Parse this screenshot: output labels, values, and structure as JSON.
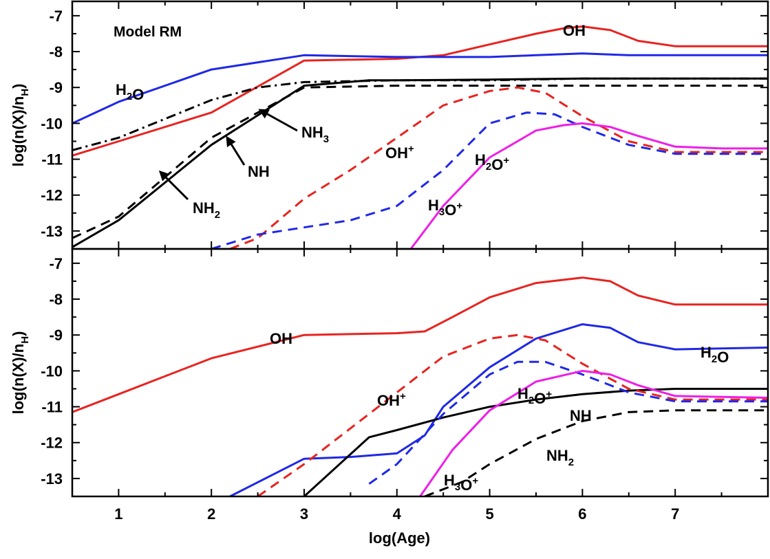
{
  "chart_data": [
    {
      "type": "line",
      "panel": "top",
      "title": "Model RM",
      "xlabel": "",
      "ylabel": "log(n(X)/n_H)",
      "xlim": [
        0.5,
        8.0
      ],
      "ylim": [
        -13.5,
        -6.6
      ],
      "xticks": [
        1,
        2,
        3,
        4,
        5,
        6,
        7
      ],
      "yticks": [
        -13,
        -12,
        -11,
        -10,
        -9,
        -8,
        -7
      ],
      "grid": false,
      "series": [
        {
          "name": "OH",
          "color": "#e8231f",
          "style": "solid",
          "x": [
            0.5,
            1.0,
            2.0,
            3.0,
            4.0,
            4.5,
            5.0,
            5.5,
            5.8,
            6.0,
            6.3,
            6.6,
            7.0,
            8.0
          ],
          "y": [
            -10.9,
            -10.5,
            -9.7,
            -8.25,
            -8.2,
            -8.1,
            -7.8,
            -7.5,
            -7.35,
            -7.3,
            -7.4,
            -7.7,
            -7.85,
            -7.85
          ]
        },
        {
          "name": "H2O",
          "color": "#1f28e6",
          "style": "solid",
          "x": [
            0.5,
            1.0,
            2.0,
            3.0,
            4.0,
            4.5,
            5.0,
            5.5,
            6.0,
            6.5,
            7.0,
            8.0
          ],
          "y": [
            -10.0,
            -9.4,
            -8.5,
            -8.1,
            -8.15,
            -8.15,
            -8.15,
            -8.1,
            -8.05,
            -8.1,
            -8.1,
            -8.1
          ]
        },
        {
          "name": "NH3",
          "color": "#000000",
          "style": "dashdot",
          "x": [
            0.5,
            1.0,
            2.0,
            2.5,
            3.0,
            4.0,
            5.0,
            6.0,
            7.0,
            8.0
          ],
          "y": [
            -10.75,
            -10.4,
            -9.35,
            -9.0,
            -8.85,
            -8.8,
            -8.8,
            -8.75,
            -8.75,
            -8.75
          ]
        },
        {
          "name": "NH",
          "color": "#000000",
          "style": "dashed",
          "x": [
            0.5,
            1.0,
            2.0,
            3.0,
            4.0,
            5.0,
            6.0,
            7.0,
            8.0
          ],
          "y": [
            -13.2,
            -12.6,
            -10.4,
            -9.0,
            -8.95,
            -8.95,
            -8.95,
            -8.95,
            -8.95
          ]
        },
        {
          "name": "NH2",
          "color": "#000000",
          "style": "solid",
          "x": [
            0.5,
            1.0,
            2.0,
            3.0,
            3.7,
            4.0,
            5.0,
            6.0,
            7.0,
            8.0
          ],
          "y": [
            -13.45,
            -12.7,
            -10.6,
            -8.95,
            -8.8,
            -8.8,
            -8.78,
            -8.75,
            -8.75,
            -8.75
          ]
        },
        {
          "name": "OH+",
          "color": "#e8231f",
          "style": "dashed",
          "x": [
            2.2,
            2.5,
            3.0,
            3.5,
            4.0,
            4.5,
            5.0,
            5.3,
            5.6,
            6.0,
            6.5,
            7.0,
            8.0
          ],
          "y": [
            -13.5,
            -13.2,
            -12.1,
            -11.3,
            -10.4,
            -9.5,
            -9.1,
            -9.0,
            -9.15,
            -9.8,
            -10.5,
            -10.8,
            -10.8
          ]
        },
        {
          "name": "H2O+",
          "color": "#1f28e6",
          "style": "dashed",
          "x": [
            2.0,
            2.5,
            3.0,
            3.5,
            4.0,
            4.5,
            5.0,
            5.4,
            5.7,
            6.0,
            6.5,
            7.0,
            8.0
          ],
          "y": [
            -13.5,
            -13.1,
            -12.9,
            -12.7,
            -12.3,
            -11.3,
            -10.0,
            -9.7,
            -9.75,
            -10.1,
            -10.6,
            -10.85,
            -10.85
          ]
        },
        {
          "name": "H3O+",
          "color": "#ee1ee8",
          "style": "solid",
          "x": [
            4.15,
            4.5,
            5.0,
            5.5,
            5.8,
            6.0,
            6.3,
            6.6,
            7.0,
            7.5,
            8.0
          ],
          "y": [
            -13.5,
            -12.3,
            -10.95,
            -10.2,
            -10.05,
            -10.0,
            -10.1,
            -10.35,
            -10.65,
            -10.7,
            -10.7
          ]
        }
      ],
      "labels": [
        {
          "text": "Model RM"
        },
        {
          "text": "OH"
        },
        {
          "text": "H₂O"
        },
        {
          "text": "NH₃"
        },
        {
          "text": "NH"
        },
        {
          "text": "NH₂"
        },
        {
          "text": "OH⁺"
        },
        {
          "text": "H₂O⁺"
        },
        {
          "text": "H₃O⁺"
        }
      ]
    },
    {
      "type": "line",
      "panel": "bottom",
      "title": "",
      "xlabel": "log(Age)",
      "ylabel": "log(n(X)/n_H)",
      "xlim": [
        0.5,
        8.0
      ],
      "ylim": [
        -13.5,
        -6.6
      ],
      "xticks": [
        1,
        2,
        3,
        4,
        5,
        6,
        7
      ],
      "yticks": [
        -13,
        -12,
        -11,
        -10,
        -9,
        -8,
        -7
      ],
      "grid": false,
      "series": [
        {
          "name": "OH",
          "color": "#e8231f",
          "style": "solid",
          "x": [
            0.5,
            1.0,
            2.0,
            3.0,
            4.0,
            4.3,
            4.6,
            5.0,
            5.5,
            6.0,
            6.3,
            6.6,
            7.0,
            8.0
          ],
          "y": [
            -11.15,
            -10.65,
            -9.65,
            -9.0,
            -8.95,
            -8.9,
            -8.5,
            -7.95,
            -7.55,
            -7.4,
            -7.5,
            -7.9,
            -8.15,
            -8.15
          ]
        },
        {
          "name": "H2O",
          "color": "#1f28e6",
          "style": "solid",
          "x": [
            2.2,
            3.0,
            3.5,
            4.0,
            4.3,
            4.5,
            5.0,
            5.5,
            6.0,
            6.3,
            6.6,
            7.0,
            8.0
          ],
          "y": [
            -13.5,
            -12.45,
            -12.4,
            -12.3,
            -11.8,
            -11.0,
            -9.9,
            -9.1,
            -8.7,
            -8.8,
            -9.2,
            -9.4,
            -9.35
          ]
        },
        {
          "name": "NH",
          "color": "#000000",
          "style": "solid",
          "x": [
            3.0,
            3.7,
            4.0,
            4.5,
            5.0,
            5.5,
            6.0,
            6.5,
            7.0,
            8.0
          ],
          "y": [
            -13.5,
            -11.85,
            -11.65,
            -11.3,
            -11.0,
            -10.8,
            -10.65,
            -10.55,
            -10.5,
            -10.5
          ]
        },
        {
          "name": "NH2",
          "color": "#000000",
          "style": "dashed",
          "x": [
            4.3,
            4.7,
            5.0,
            5.5,
            6.0,
            6.5,
            7.0,
            8.0
          ],
          "y": [
            -13.5,
            -13.1,
            -12.6,
            -11.9,
            -11.4,
            -11.15,
            -11.1,
            -11.1
          ]
        },
        {
          "name": "OH+",
          "color": "#e8231f",
          "style": "dashed",
          "x": [
            2.5,
            3.0,
            3.5,
            4.0,
            4.5,
            5.0,
            5.3,
            5.6,
            6.0,
            6.5,
            7.0,
            8.0
          ],
          "y": [
            -13.5,
            -12.6,
            -11.6,
            -10.6,
            -9.6,
            -9.1,
            -9.0,
            -9.15,
            -9.8,
            -10.5,
            -10.8,
            -10.8
          ]
        },
        {
          "name": "H2O+",
          "color": "#1f28e6",
          "style": "dashed",
          "x": [
            3.7,
            4.0,
            4.5,
            5.0,
            5.3,
            5.6,
            6.0,
            6.5,
            7.0,
            8.0
          ],
          "y": [
            -13.15,
            -12.6,
            -11.2,
            -10.1,
            -9.75,
            -9.75,
            -10.1,
            -10.6,
            -10.85,
            -10.85
          ]
        },
        {
          "name": "H3O+",
          "color": "#ee1ee8",
          "style": "solid",
          "x": [
            4.25,
            4.6,
            5.0,
            5.5,
            6.0,
            6.3,
            6.6,
            7.0,
            8.0
          ],
          "y": [
            -13.5,
            -12.2,
            -11.1,
            -10.3,
            -10.0,
            -10.1,
            -10.4,
            -10.7,
            -10.75
          ]
        }
      ],
      "labels": [
        {
          "text": "OH"
        },
        {
          "text": "H₂O"
        },
        {
          "text": "OH⁺"
        },
        {
          "text": "H₂O⁺"
        },
        {
          "text": "NH"
        },
        {
          "text": "H₃O⁺"
        },
        {
          "text": "NH₂"
        }
      ]
    }
  ]
}
